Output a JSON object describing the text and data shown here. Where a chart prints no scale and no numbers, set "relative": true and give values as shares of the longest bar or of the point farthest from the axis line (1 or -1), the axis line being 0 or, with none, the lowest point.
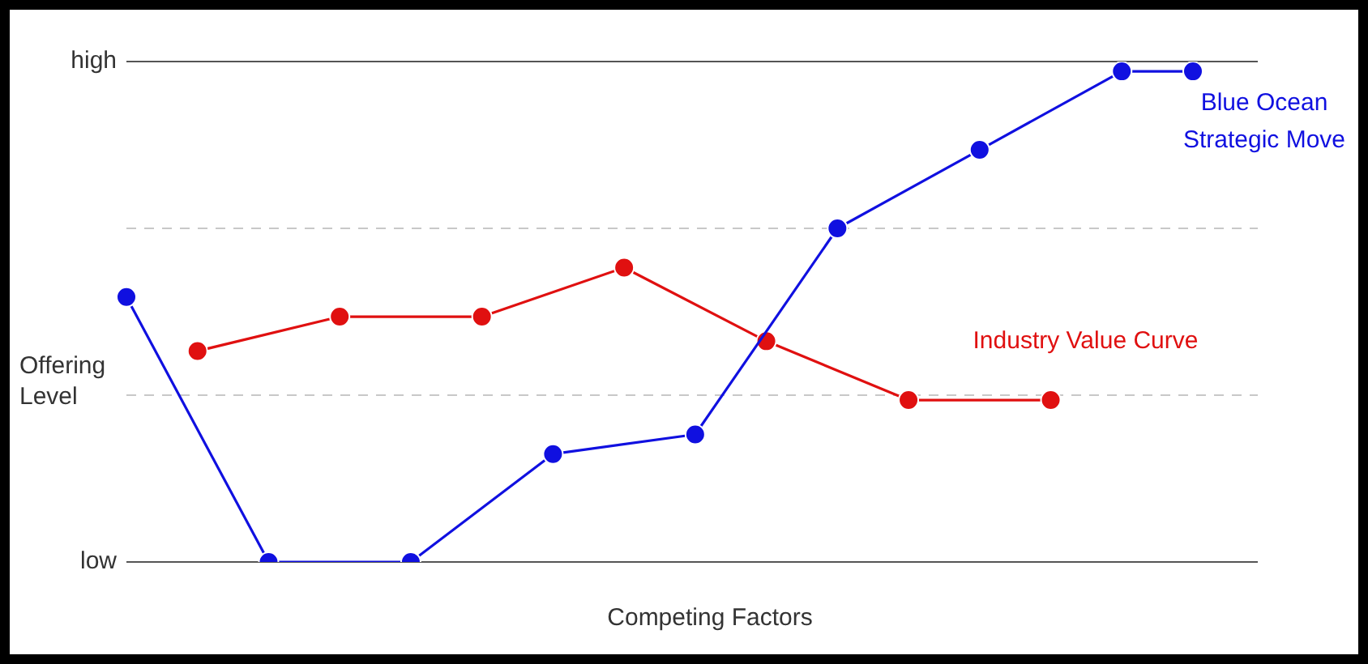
{
  "chart_data": {
    "type": "line",
    "xlabel": "Competing Factors",
    "ylabel": "Offering Level",
    "relative": true,
    "categories": [
      null,
      null,
      null,
      null,
      null,
      null,
      null,
      null,
      null,
      null,
      null,
      null,
      null,
      null,
      null,
      null
    ],
    "series": [
      {
        "name": "Blue Ocean Strategic Move",
        "color": "#1010e0",
        "values": [
          0.54,
          null,
          0,
          null,
          0,
          null,
          0.22,
          null,
          0.26,
          null,
          0.68,
          null,
          0.84,
          null,
          1,
          1
        ]
      },
      {
        "name": "Industry Value Curve",
        "color": "#e01010",
        "values": [
          null,
          0.43,
          null,
          0.5,
          null,
          0.5,
          null,
          0.6,
          null,
          0.45,
          null,
          0.33,
          null,
          0.33,
          null,
          null
        ]
      }
    ],
    "ref_lines": [
      {
        "axis": "y",
        "value": 0,
        "label": "low"
      },
      {
        "axis": "y",
        "value": 0.34,
        "line_style": "dashed"
      },
      {
        "axis": "y",
        "value": 0.68,
        "line_style": "dashed"
      },
      {
        "axis": "y",
        "value": 1.02,
        "label": "high"
      }
    ],
    "marker": "circle",
    "line_style": "solid",
    "legend": false
  }
}
